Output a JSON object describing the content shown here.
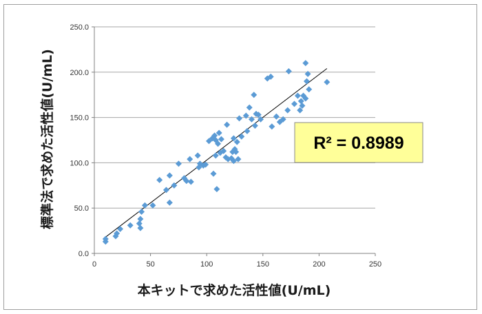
{
  "chart_data": {
    "type": "scatter",
    "title": "",
    "xlabel": "本キットで求めた活性値(U/mL)",
    "ylabel": "標準法で求めた活性値(U/mL)",
    "xlim": [
      0,
      250
    ],
    "ylim": [
      0,
      250
    ],
    "x_ticks": [
      "0",
      "50",
      "100",
      "150",
      "200",
      "250"
    ],
    "y_ticks": [
      "0.0",
      "50.0",
      "100.0",
      "150.0",
      "200.0",
      "250.0"
    ],
    "grid": "horizontal",
    "marker_color": "#5b9bd5",
    "trendline": {
      "type": "linear",
      "from": [
        10,
        18
      ],
      "to": [
        207,
        204
      ],
      "color": "#000000"
    },
    "annotation": {
      "label": "R² = 0.8989",
      "background": "#ffff99"
    },
    "series": [
      {
        "points": [
          [
            10,
            13
          ],
          [
            10,
            16
          ],
          [
            19,
            19
          ],
          [
            20,
            22
          ],
          [
            23,
            27
          ],
          [
            32,
            31
          ],
          [
            40,
            33
          ],
          [
            41,
            38
          ],
          [
            41,
            28
          ],
          [
            42,
            46
          ],
          [
            45,
            53
          ],
          [
            52,
            53
          ],
          [
            58,
            81
          ],
          [
            64,
            70
          ],
          [
            67,
            86
          ],
          [
            67,
            56
          ],
          [
            71,
            75
          ],
          [
            75,
            99
          ],
          [
            80,
            83
          ],
          [
            82,
            80
          ],
          [
            85,
            104
          ],
          [
            86,
            79
          ],
          [
            92,
            108
          ],
          [
            93,
            95
          ],
          [
            94,
            99
          ],
          [
            97,
            97
          ],
          [
            99,
            98
          ],
          [
            102,
            124
          ],
          [
            105,
            127
          ],
          [
            106,
            88
          ],
          [
            107,
            130
          ],
          [
            108,
            125
          ],
          [
            108,
            108
          ],
          [
            109,
            71
          ],
          [
            110,
            121
          ],
          [
            111,
            133
          ],
          [
            112,
            111
          ],
          [
            113,
            126
          ],
          [
            115,
            113
          ],
          [
            117,
            106
          ],
          [
            118,
            142
          ],
          [
            119,
            104
          ],
          [
            122,
            105
          ],
          [
            123,
            112
          ],
          [
            124,
            102
          ],
          [
            124,
            127
          ],
          [
            125,
            115
          ],
          [
            126,
            112
          ],
          [
            127,
            123
          ],
          [
            128,
            104
          ],
          [
            129,
            149
          ],
          [
            131,
            129
          ],
          [
            135,
            152
          ],
          [
            136,
            135
          ],
          [
            138,
            161
          ],
          [
            140,
            148
          ],
          [
            142,
            175
          ],
          [
            143,
            141
          ],
          [
            144,
            154
          ],
          [
            146,
            153
          ],
          [
            148,
            148
          ],
          [
            154,
            193
          ],
          [
            157,
            195
          ],
          [
            158,
            140
          ],
          [
            162,
            151
          ],
          [
            165,
            145
          ],
          [
            168,
            148
          ],
          [
            172,
            158
          ],
          [
            173,
            201
          ],
          [
            178,
            165
          ],
          [
            181,
            174
          ],
          [
            183,
            158
          ],
          [
            184,
            168
          ],
          [
            185,
            163
          ],
          [
            186,
            174
          ],
          [
            188,
            171
          ],
          [
            189,
            190
          ],
          [
            188,
            210
          ],
          [
            190,
            198
          ],
          [
            191,
            181
          ],
          [
            207,
            189
          ]
        ]
      }
    ]
  }
}
